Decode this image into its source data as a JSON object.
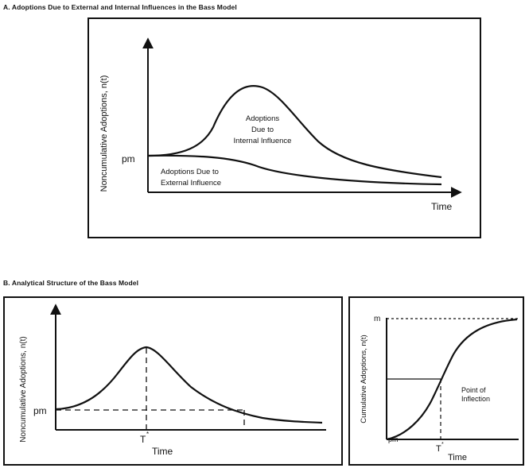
{
  "panel_a": {
    "title": "A. Adoptions Due to External and Internal Influences in the Bass Model",
    "y_axis_label": "Noncumulative Adoptions, n(t)",
    "x_axis_label": "Time",
    "pm_label": "pm",
    "internal_label": [
      "Adoptions",
      "Due to",
      "Internal Influence"
    ],
    "external_label": [
      "Adoptions Due to",
      "External Influence"
    ]
  },
  "panel_b": {
    "title": "B. Analytical Structure of the Bass Model",
    "left": {
      "y_axis_label": "Noncumulative Adoptions, n(t)",
      "x_axis_label": "Time",
      "pm_label": "pm",
      "tstar_label": "T"
    },
    "right": {
      "y_axis_label": "Cumulative Adoptions, n(t)",
      "x_axis_label": "Time",
      "m_label": "m",
      "pm_label": "pm",
      "tstar_label": "T",
      "inflection_label": [
        "Point of",
        "Inflection"
      ]
    }
  }
}
